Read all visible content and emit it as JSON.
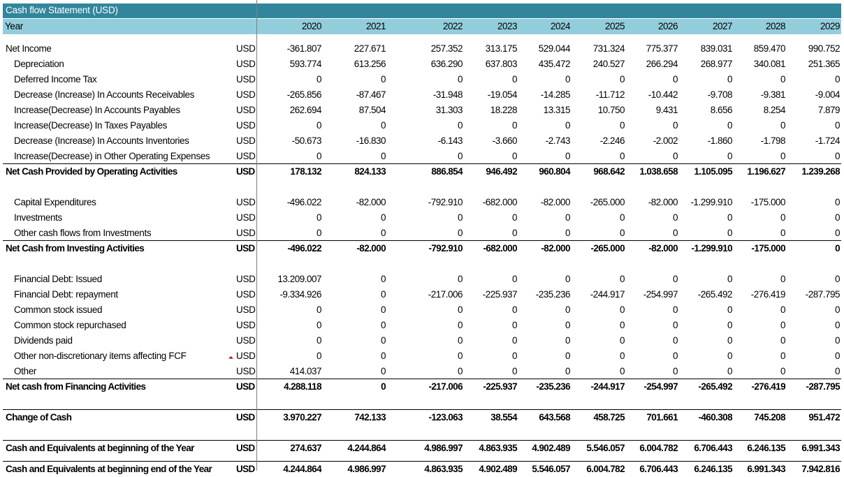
{
  "title": "Cash flow Statement (USD)",
  "header": {
    "label": "Year",
    "years": [
      "2020",
      "2021",
      "2022",
      "2023",
      "2024",
      "2025",
      "2026",
      "2027",
      "2028",
      "2029"
    ]
  },
  "rows": [
    {
      "label": "Net Income",
      "unit": "USD",
      "indent": false,
      "bold": false,
      "values": [
        "-361.807",
        "227.671",
        "257.352",
        "313.175",
        "529.044",
        "731.324",
        "775.377",
        "839.031",
        "859.470",
        "990.752"
      ]
    },
    {
      "label": "Depreciation",
      "unit": "USD",
      "indent": true,
      "bold": false,
      "values": [
        "593.774",
        "613.256",
        "636.290",
        "637.803",
        "435.472",
        "240.527",
        "266.294",
        "268.977",
        "340.081",
        "251.365"
      ]
    },
    {
      "label": "Deferred Income Tax",
      "unit": "USD",
      "indent": true,
      "bold": false,
      "values": [
        "0",
        "0",
        "0",
        "0",
        "0",
        "0",
        "0",
        "0",
        "0",
        "0"
      ]
    },
    {
      "label": "Decrease (Increase) In Accounts Receivables",
      "unit": "USD",
      "indent": true,
      "bold": false,
      "values": [
        "-265.856",
        "-87.467",
        "-31.948",
        "-19.054",
        "-14.285",
        "-11.712",
        "-10.442",
        "-9.708",
        "-9.381",
        "-9.004"
      ]
    },
    {
      "label": "Increase(Decrease) In Accounts Payables",
      "unit": "USD",
      "indent": true,
      "bold": false,
      "values": [
        "262.694",
        "87.504",
        "31.303",
        "18.228",
        "13.315",
        "10.750",
        "9.431",
        "8.656",
        "8.254",
        "7.879"
      ]
    },
    {
      "label": "Increase(Decrease) In Taxes Payables",
      "unit": "USD",
      "indent": true,
      "bold": false,
      "values": [
        "0",
        "0",
        "0",
        "0",
        "0",
        "0",
        "0",
        "0",
        "0",
        "0"
      ]
    },
    {
      "label": "Decrease (Increase) In Accounts Inventories",
      "unit": "USD",
      "indent": true,
      "bold": false,
      "values": [
        "-50.673",
        "-16.830",
        "-6.143",
        "-3.660",
        "-2.743",
        "-2.246",
        "-2.002",
        "-1.860",
        "-1.798",
        "-1.724"
      ]
    },
    {
      "label": "Increase(Decrease) in Other Operating Expenses",
      "unit": "USD",
      "indent": true,
      "bold": false,
      "values": [
        "0",
        "0",
        "0",
        "0",
        "0",
        "0",
        "0",
        "0",
        "0",
        "0"
      ]
    },
    {
      "label": "Net Cash Provided by Operating Activities",
      "unit": "USD",
      "indent": false,
      "bold": true,
      "rule": true,
      "values": [
        "178.132",
        "824.133",
        "886.854",
        "946.492",
        "960.804",
        "968.642",
        "1.038.658",
        "1.105.095",
        "1.196.627",
        "1.239.268"
      ]
    },
    {
      "label": "Capital Expenditures",
      "unit": "USD",
      "indent": true,
      "bold": false,
      "values": [
        "-496.022",
        "-82.000",
        "-792.910",
        "-682.000",
        "-82.000",
        "-265.000",
        "-82.000",
        "-1.299.910",
        "-175.000",
        "0"
      ]
    },
    {
      "label": "Investments",
      "unit": "USD",
      "indent": true,
      "bold": false,
      "values": [
        "0",
        "0",
        "0",
        "0",
        "0",
        "0",
        "0",
        "0",
        "0",
        "0"
      ]
    },
    {
      "label": "Other cash flows from Investments",
      "unit": "USD",
      "indent": true,
      "bold": false,
      "values": [
        "0",
        "0",
        "0",
        "0",
        "0",
        "0",
        "0",
        "0",
        "0",
        "0"
      ]
    },
    {
      "label": "Net Cash from Investing Activities",
      "unit": "USD",
      "indent": false,
      "bold": true,
      "rule": true,
      "values": [
        "-496.022",
        "-82.000",
        "-792.910",
        "-682.000",
        "-82.000",
        "-265.000",
        "-82.000",
        "-1.299.910",
        "-175.000",
        "0"
      ]
    },
    {
      "label": "Financial Debt: Issued",
      "unit": "USD",
      "indent": true,
      "bold": false,
      "values": [
        "13.209.007",
        "0",
        "0",
        "0",
        "0",
        "0",
        "0",
        "0",
        "0",
        "0"
      ]
    },
    {
      "label": "Financial Debt: repayment",
      "unit": "USD",
      "indent": true,
      "bold": false,
      "values": [
        "-9.334.926",
        "0",
        "-217.006",
        "-225.937",
        "-235.236",
        "-244.917",
        "-254.997",
        "-265.492",
        "-276.419",
        "-287.795"
      ]
    },
    {
      "label": "Common stock issued",
      "unit": "USD",
      "indent": true,
      "bold": false,
      "values": [
        "0",
        "0",
        "0",
        "0",
        "0",
        "0",
        "0",
        "0",
        "0",
        "0"
      ]
    },
    {
      "label": "Common stock repurchased",
      "unit": "USD",
      "indent": true,
      "bold": false,
      "values": [
        "0",
        "0",
        "0",
        "0",
        "0",
        "0",
        "0",
        "0",
        "0",
        "0"
      ]
    },
    {
      "label": "Dividends paid",
      "unit": "USD",
      "indent": true,
      "bold": false,
      "values": [
        "0",
        "0",
        "0",
        "0",
        "0",
        "0",
        "0",
        "0",
        "0",
        "0"
      ]
    },
    {
      "label": "Other non-discretionary items affecting FCF",
      "unit": "USD",
      "indent": true,
      "bold": false,
      "values": [
        "0",
        "0",
        "0",
        "0",
        "0",
        "0",
        "0",
        "0",
        "0",
        "0"
      ]
    },
    {
      "label": "Other",
      "unit": "USD",
      "indent": true,
      "bold": false,
      "values": [
        "414.037",
        "0",
        "0",
        "0",
        "0",
        "0",
        "0",
        "0",
        "0",
        "0"
      ]
    },
    {
      "label": "Net cash from Financing Activities",
      "unit": "USD",
      "indent": false,
      "bold": true,
      "rule": true,
      "values": [
        "4.288.118",
        "0",
        "-217.006",
        "-225.937",
        "-235.236",
        "-244.917",
        "-254.997",
        "-265.492",
        "-276.419",
        "-287.795"
      ]
    },
    {
      "label": "Change of Cash",
      "unit": "USD",
      "indent": false,
      "bold": true,
      "rule": true,
      "values": [
        "3.970.227",
        "742.133",
        "-123.063",
        "38.554",
        "643.568",
        "458.725",
        "701.661",
        "-460.308",
        "745.208",
        "951.472"
      ]
    },
    {
      "label": "Cash and Equivalents at beginning of the Year",
      "unit": "USD",
      "indent": false,
      "bold": true,
      "rule": true,
      "values": [
        "274.637",
        "4.244.864",
        "4.986.997",
        "4.863.935",
        "4.902.489",
        "5.546.057",
        "6.004.782",
        "6.706.443",
        "6.246.135",
        "6.991.343"
      ]
    },
    {
      "label": "Cash and Equivalents at beginning end of the Year",
      "unit": "USD",
      "indent": false,
      "bold": true,
      "rule": true,
      "values": [
        "4.244.864",
        "4.986.997",
        "4.863.935",
        "4.902.489",
        "5.546.057",
        "6.004.782",
        "6.706.443",
        "6.246.135",
        "6.991.343",
        "7.942.816"
      ]
    }
  ]
}
